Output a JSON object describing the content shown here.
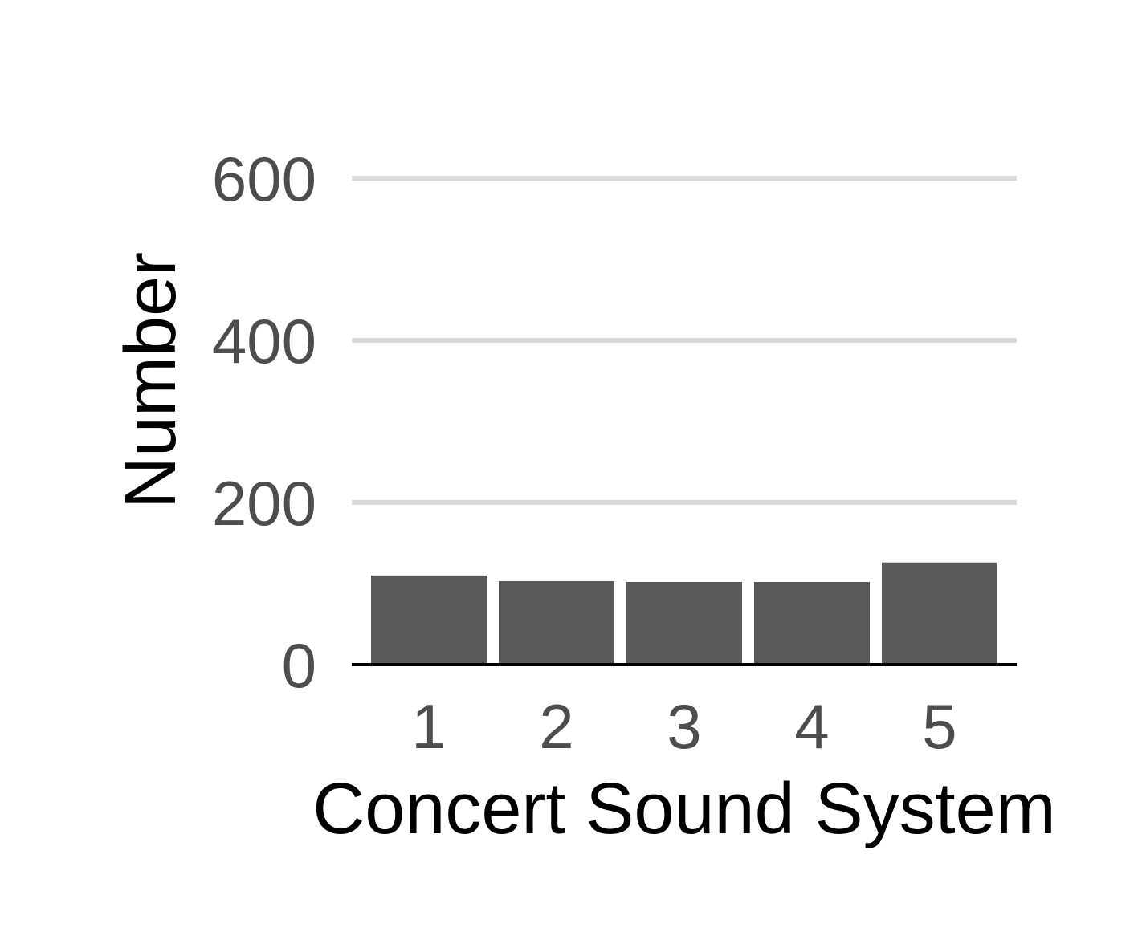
{
  "chart_data": {
    "type": "bar",
    "title": "",
    "xlabel": "Concert Sound System",
    "ylabel": "Number",
    "categories": [
      "1",
      "2",
      "3",
      "4",
      "5"
    ],
    "values": [
      110,
      103,
      102,
      102,
      126
    ],
    "ylim": [
      0,
      600
    ],
    "yticks": [
      "0",
      "200",
      "400",
      "600"
    ],
    "grid": true,
    "colors": {
      "bar": "#595959",
      "grid": "#d9d9d9",
      "axis": "#000000",
      "tick_text": "#4d4d4d",
      "title_text": "#000000"
    }
  }
}
